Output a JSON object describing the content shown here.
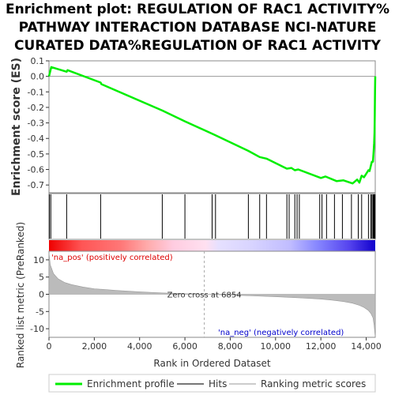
{
  "chart_data": {
    "type": "line",
    "title_lines": [
      "Enrichment plot: REGULATION OF RAC1 ACTIVITY%",
      "PATHWAY INTERACTION DATABASE NCI-NATURE",
      "CURATED DATA%REGULATION OF RAC1 ACTIVITY"
    ],
    "es_panel": {
      "ylabel": "Enrichment score (ES)",
      "ylim": [
        -0.75,
        0.1
      ],
      "yticks": [
        0.1,
        0.0,
        -0.1,
        -0.2,
        -0.3,
        -0.4,
        -0.5,
        -0.6,
        -0.7
      ],
      "ytick_labels": [
        "0.1",
        "0.0",
        "-0.1",
        "-0.2",
        "-0.3",
        "-0.4",
        "-0.5",
        "-0.6",
        "-0.7"
      ],
      "series": [
        {
          "name": "Enrichment profile",
          "color": "#00ee00",
          "x": [
            0,
            100,
            780,
            820,
            2280,
            2310,
            5000,
            6000,
            7200,
            7350,
            8800,
            9300,
            9600,
            10500,
            10700,
            10850,
            11000,
            12000,
            12200,
            12700,
            13000,
            13400,
            13600,
            13700,
            13800,
            13900,
            14100,
            14150,
            14250,
            14300,
            14330,
            14350,
            14370,
            14380,
            14390,
            14400
          ],
          "y": [
            0.0,
            0.06,
            0.03,
            0.04,
            -0.04,
            -0.05,
            -0.22,
            -0.29,
            -0.37,
            -0.38,
            -0.48,
            -0.52,
            -0.53,
            -0.595,
            -0.59,
            -0.605,
            -0.6,
            -0.655,
            -0.645,
            -0.675,
            -0.67,
            -0.69,
            -0.665,
            -0.685,
            -0.64,
            -0.65,
            -0.605,
            -0.61,
            -0.55,
            -0.55,
            -0.48,
            -0.43,
            -0.36,
            -0.25,
            -0.1,
            0.0
          ]
        }
      ]
    },
    "hits": [
      20,
      80,
      780,
      2280,
      5000,
      6000,
      7200,
      7350,
      8800,
      9300,
      9600,
      10500,
      10600,
      10850,
      10950,
      11050,
      11950,
      12050,
      12250,
      12600,
      12950,
      13350,
      13650,
      13800,
      14100,
      14200,
      14250,
      14300,
      14330,
      14350,
      14370,
      14390
    ],
    "metric_panel": {
      "ylabel": "Ranked list metric (PreRanked)",
      "ylim": [
        -12.5,
        12.5
      ],
      "yticks": [
        10,
        5,
        0,
        -5,
        -10
      ],
      "ytick_labels": [
        "10",
        "5",
        "0",
        "-5",
        "-10"
      ],
      "profile_x": [
        0,
        60,
        200,
        400,
        700,
        1000,
        1500,
        2000,
        3000,
        4000,
        5000,
        6000,
        6854,
        8000,
        9000,
        10000,
        11000,
        12000,
        12500,
        13000,
        13400,
        13700,
        13900,
        14100,
        14200,
        14300,
        14350,
        14400
      ],
      "profile_y": [
        12.0,
        8.5,
        6.0,
        4.5,
        3.4,
        2.8,
        2.1,
        1.6,
        1.1,
        0.7,
        0.4,
        0.15,
        0.0,
        -0.2,
        -0.45,
        -0.7,
        -1.0,
        -1.4,
        -1.7,
        -2.1,
        -2.6,
        -3.2,
        -3.8,
        -4.7,
        -5.5,
        -6.8,
        -9.0,
        -12.5
      ],
      "zero_cross_label": "Zero cross at 6854",
      "zero_cross": 6854,
      "pos_label": "'na_pos' (positively correlated)",
      "neg_label": "'na_neg' (negatively correlated)"
    },
    "xaxis": {
      "xlabel": "Rank in Ordered Dataset",
      "xlim": [
        0,
        14400
      ],
      "xticks": [
        0,
        2000,
        4000,
        6000,
        8000,
        10000,
        12000,
        14000
      ],
      "xtick_labels": [
        "0",
        "2,000",
        "4,000",
        "6,000",
        "8,000",
        "10,000",
        "12,000",
        "14,000"
      ]
    },
    "legend": {
      "placement": "bottom",
      "items": [
        {
          "label": "Enrichment profile",
          "color": "#00ee00"
        },
        {
          "label": "Hits",
          "color": "#777777"
        },
        {
          "label": "Ranking metric scores",
          "color": "#cccccc"
        }
      ]
    },
    "colors": {
      "profile": "#00ee00",
      "hits": "#000000",
      "metric_fill": "#bbbbbb",
      "pos_text": "#dd0000",
      "neg_text": "#0000cc"
    }
  }
}
